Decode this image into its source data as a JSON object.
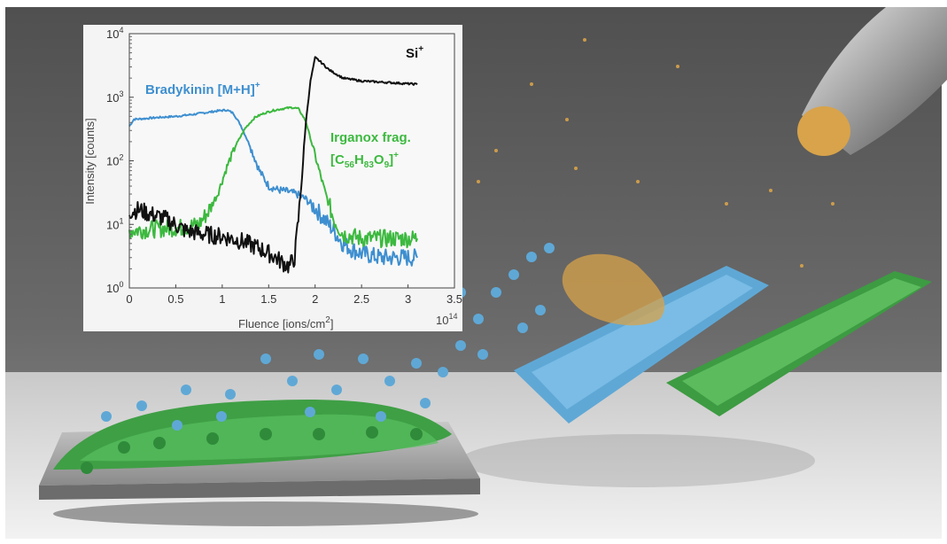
{
  "chart_data": {
    "type": "line",
    "xlabel_text": "Fluence [ions/cm",
    "xlabel_sup": "2",
    "xlabel_end": "]",
    "ylabel": "Intensity [counts]",
    "x_multiplier_base": "10",
    "x_multiplier_exp": "14",
    "xlim": [
      0,
      3.5
    ],
    "ylim": [
      1,
      10000
    ],
    "y_scale": "log",
    "xticks": [
      "0",
      "0.5",
      "1",
      "1.5",
      "2",
      "2.5",
      "3",
      "3.5"
    ],
    "yticks": [
      {
        "base": "10",
        "exp": "0"
      },
      {
        "base": "10",
        "exp": "1"
      },
      {
        "base": "10",
        "exp": "2"
      },
      {
        "base": "10",
        "exp": "3"
      },
      {
        "base": "10",
        "exp": "4"
      }
    ],
    "series": [
      {
        "key": "bradykinin",
        "label_main": "Bradykinin [M+H]",
        "label_sup": "+",
        "color": "#3e8fd0",
        "x": [
          0,
          0.05,
          0.15,
          0.3,
          0.5,
          0.7,
          0.85,
          0.95,
          1.05,
          1.12,
          1.2,
          1.3,
          1.4,
          1.5,
          1.6,
          1.7,
          1.8,
          1.9,
          2.0,
          2.1,
          2.2,
          2.3,
          2.4,
          2.5,
          2.7,
          3.1
        ],
        "y": [
          350,
          450,
          460,
          480,
          500,
          540,
          580,
          610,
          630,
          560,
          360,
          170,
          70,
          40,
          35,
          33,
          30,
          25,
          18,
          12,
          8,
          5,
          4,
          3.5,
          3,
          3
        ]
      },
      {
        "key": "irganox",
        "label_main": "Irganox frag.",
        "label_formula": "[C56H83O9]",
        "label_sup": "+",
        "color": "#3cb93f",
        "x": [
          0,
          0.3,
          0.6,
          0.75,
          0.85,
          0.95,
          1.05,
          1.15,
          1.25,
          1.35,
          1.45,
          1.55,
          1.65,
          1.75,
          1.82,
          1.9,
          2.0,
          2.1,
          2.2,
          2.3,
          2.5,
          3.1
        ],
        "y": [
          8,
          8.5,
          9,
          10,
          16,
          30,
          80,
          180,
          330,
          480,
          560,
          620,
          660,
          690,
          660,
          420,
          120,
          35,
          12,
          7,
          6,
          6
        ]
      },
      {
        "key": "si",
        "label_main": "Si",
        "label_sup": "+",
        "color": "#111111",
        "x": [
          0,
          0.1,
          0.2,
          0.4,
          0.6,
          0.8,
          1.0,
          1.2,
          1.4,
          1.55,
          1.65,
          1.72,
          1.78,
          1.82,
          1.86,
          1.9,
          1.95,
          2.0,
          2.05,
          2.15,
          2.3,
          2.5,
          2.8,
          3.1
        ],
        "y": [
          16,
          17,
          15,
          12,
          8,
          7,
          6.5,
          5.5,
          4.2,
          3.2,
          2.5,
          2.2,
          3,
          12,
          60,
          400,
          1800,
          4200,
          3700,
          2700,
          2000,
          1800,
          1700,
          1600
        ]
      }
    ]
  }
}
